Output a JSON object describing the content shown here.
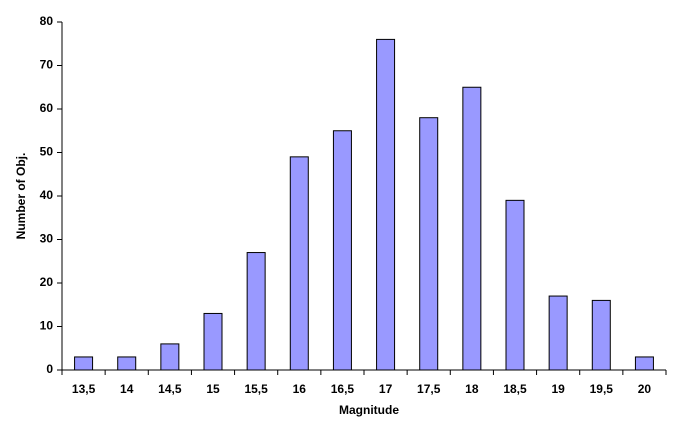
{
  "chart_data": {
    "type": "bar",
    "x_label": "Magnitude",
    "y_label": "Number of Obj.",
    "categories": [
      "13,5",
      "14",
      "14,5",
      "15",
      "15,5",
      "16",
      "16,5",
      "17",
      "17,5",
      "18",
      "18,5",
      "19",
      "19,5",
      "20"
    ],
    "values": [
      3,
      3,
      6,
      13,
      27,
      49,
      55,
      76,
      58,
      65,
      39,
      17,
      16,
      3
    ],
    "color": "#9999ff",
    "ylim": [
      0,
      80
    ],
    "yticks": [
      0,
      10,
      20,
      30,
      40,
      50,
      60,
      70,
      80
    ],
    "grid": false
  }
}
